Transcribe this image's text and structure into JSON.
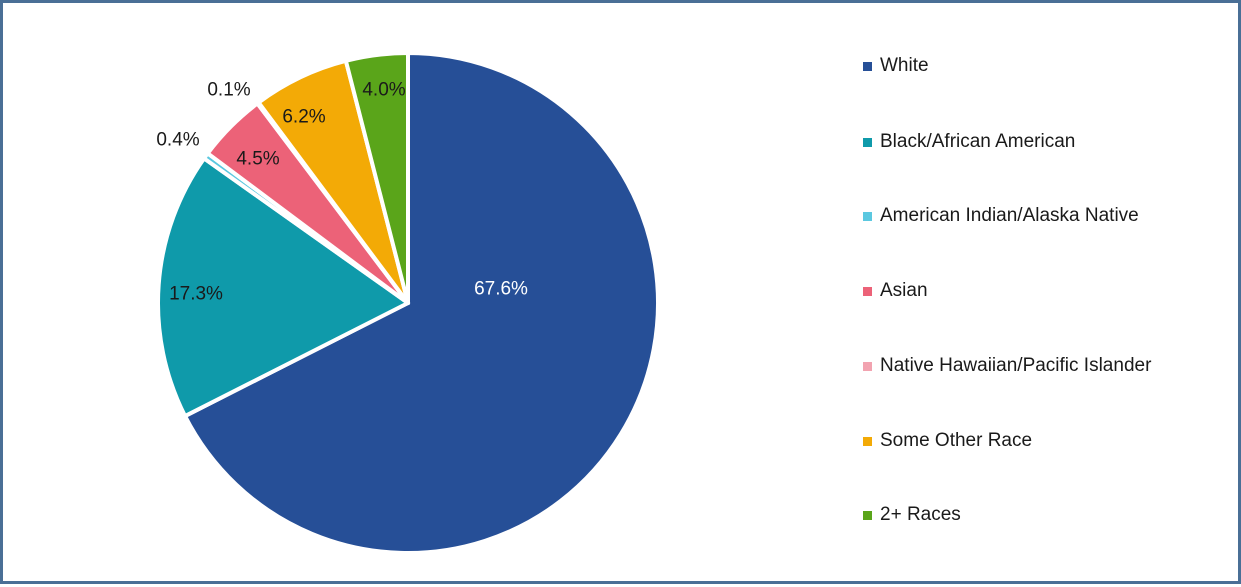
{
  "chart_data": {
    "type": "pie",
    "title": "",
    "categories": [
      "White",
      "Black/African American",
      "American Indian/Alaska Native",
      "Asian",
      "Native Hawaiian/Pacific Islander",
      "Some Other Race",
      "2+ Races"
    ],
    "values": [
      67.6,
      17.3,
      0.4,
      4.5,
      0.1,
      6.2,
      4.0
    ],
    "data_labels": [
      "67.6%",
      "17.3%",
      "0.4%",
      "4.5%",
      "0.1%",
      "6.2%",
      "4.0%"
    ],
    "colors": [
      "#264f97",
      "#0f9aaa",
      "#5bc8e0",
      "#ec6278",
      "#f2a3b0",
      "#f3aa06",
      "#5aa51a"
    ],
    "label_colors": [
      "#ffffff",
      "#1a1a1a",
      "#1a1a1a",
      "#1a1a1a",
      "#1a1a1a",
      "#1a1a1a",
      "#1a1a1a"
    ],
    "legend_position": "right",
    "start_angle": "12 o'clock",
    "direction": "clockwise"
  },
  "frame": {
    "border_color": "#4a6f96"
  }
}
